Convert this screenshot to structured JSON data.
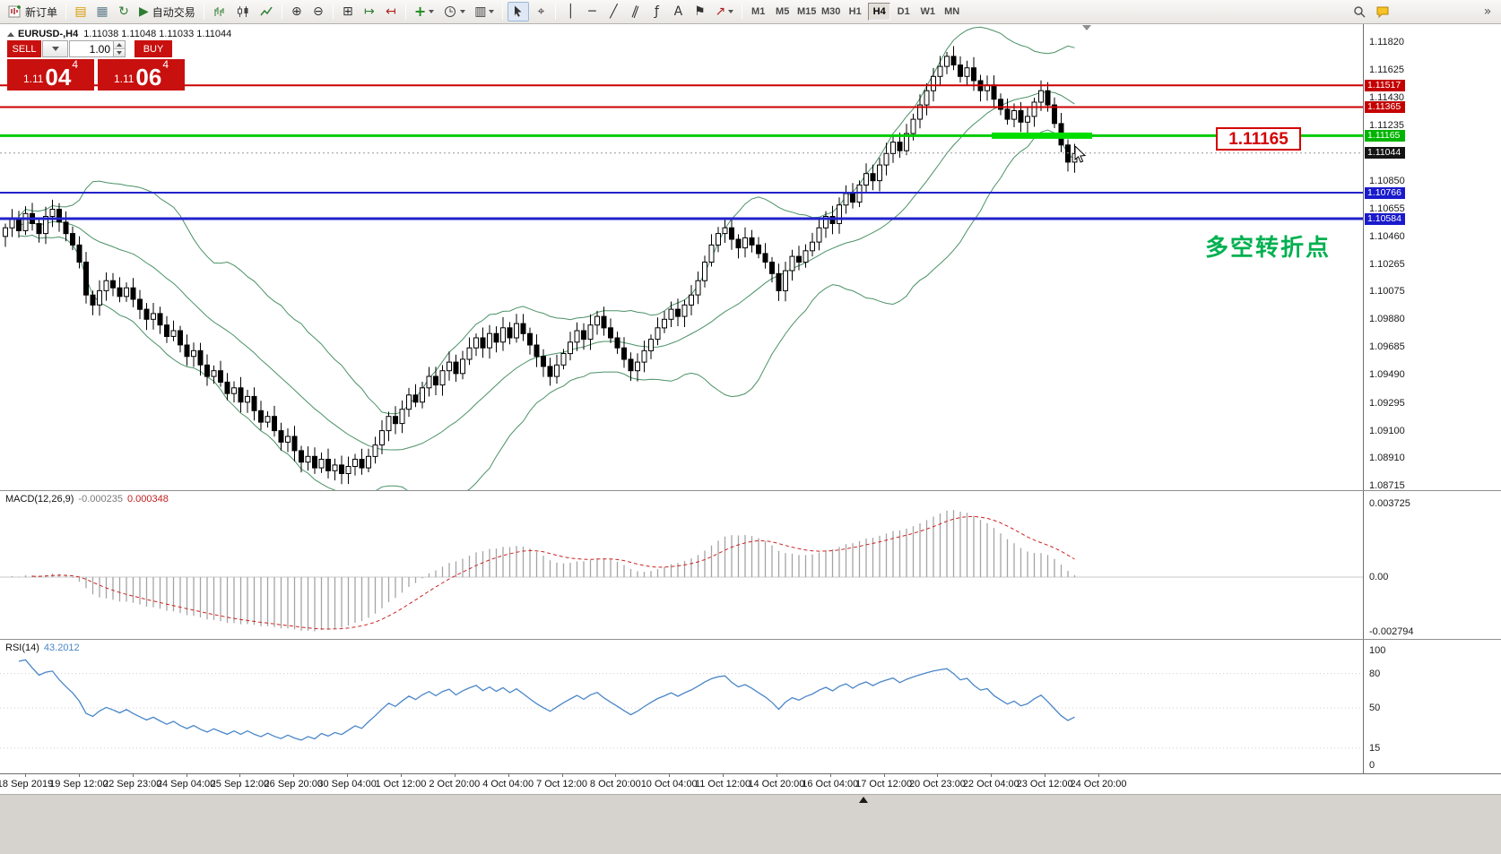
{
  "toolbar": {
    "items": [
      {
        "name": "new-order-button",
        "icon": "order",
        "label": "新订单"
      },
      {
        "sep": true
      },
      {
        "name": "new-chart-button",
        "icon": "new-chart"
      },
      {
        "name": "profiles-button",
        "icon": "profiles"
      },
      {
        "name": "refresh-button",
        "icon": "refresh"
      },
      {
        "name": "autotrading-button",
        "icon": "autotrading",
        "label": "自动交易"
      },
      {
        "sep": true
      },
      {
        "name": "bar-chart-button",
        "icon": "bars"
      },
      {
        "name": "candlestick-chart-button",
        "icon": "candles"
      },
      {
        "name": "line-chart-button",
        "icon": "line"
      },
      {
        "sep": true
      },
      {
        "name": "zoom-in-button",
        "icon": "zoom-in"
      },
      {
        "name": "zoom-out-button",
        "icon": "zoom-out"
      },
      {
        "sep": true
      },
      {
        "name": "tile-windows-button",
        "icon": "tile"
      },
      {
        "name": "auto-scroll-button",
        "icon": "autoscroll"
      },
      {
        "name": "chart-shift-button",
        "icon": "shift"
      },
      {
        "sep": true
      },
      {
        "name": "indicators-button",
        "icon": "indicator-add",
        "dropdown": true
      },
      {
        "name": "periods-button",
        "icon": "clock",
        "dropdown": true
      },
      {
        "name": "templates-button",
        "icon": "template",
        "dropdown": true
      },
      {
        "sep": true
      },
      {
        "name": "cursor-button",
        "icon": "cursor",
        "active": true
      },
      {
        "name": "crosshair-button",
        "icon": "crosshair"
      },
      {
        "sep": true
      },
      {
        "name": "vertical-line-button",
        "icon": "vline"
      },
      {
        "name": "horizontal-line-button",
        "icon": "hline"
      },
      {
        "name": "trendline-button",
        "icon": "tline"
      },
      {
        "name": "channel-button",
        "icon": "channel"
      },
      {
        "name": "fibonacci-button",
        "icon": "fibo"
      },
      {
        "name": "text-button",
        "icon": "text"
      },
      {
        "name": "label-button",
        "icon": "flag"
      },
      {
        "name": "arrows-button",
        "icon": "arrows",
        "dropdown": true
      },
      {
        "sep": true
      }
    ],
    "timeframes": [
      {
        "name": "timeframe-m1",
        "label": "M1"
      },
      {
        "name": "timeframe-m5",
        "label": "M5"
      },
      {
        "name": "timeframe-m15",
        "label": "M15"
      },
      {
        "name": "timeframe-m30",
        "label": "M30"
      },
      {
        "name": "timeframe-h1",
        "label": "H1"
      },
      {
        "name": "timeframe-h4",
        "label": "H4",
        "active": true
      },
      {
        "name": "timeframe-d1",
        "label": "D1"
      },
      {
        "name": "timeframe-w1",
        "label": "W1"
      },
      {
        "name": "timeframe-mn",
        "label": "MN"
      }
    ],
    "right_items": [
      {
        "name": "search-button",
        "icon": "search"
      },
      {
        "name": "community-button",
        "icon": "chat"
      },
      {
        "name": "menu-overflow-button",
        "icon": "overflow"
      }
    ]
  },
  "chart": {
    "symbol_period": "EURUSD-,H4",
    "ohlc": "1.11038 1.11048 1.11033 1.11044",
    "trade_panel": {
      "sell_label": "SELL",
      "buy_label": "BUY",
      "volume": "1.00",
      "sell_price": {
        "prefix": "1.11",
        "big": "04",
        "sup": "4"
      },
      "buy_price": {
        "prefix": "1.11",
        "big": "06",
        "sup": "4"
      }
    },
    "callout_text": "1.11165",
    "annotation": {
      "text": "多空转折点",
      "color": "#00b050"
    },
    "axis_labels": [
      "1.11820",
      "1.11625",
      "1.11430",
      "1.11235",
      "1.10850",
      "1.10655",
      "1.10460",
      "1.10265",
      "1.10075",
      "1.09880",
      "1.09685",
      "1.09490",
      "1.09295",
      "1.09100",
      "1.08910",
      "1.08715"
    ],
    "price_tags": [
      {
        "text": "1.11517",
        "price": 1.11517,
        "color": "#c40000"
      },
      {
        "text": "1.11365",
        "price": 1.11365,
        "color": "#c40000"
      },
      {
        "text": "1.11165",
        "price": 1.11165,
        "color": "#00b400"
      },
      {
        "text": "1.11044",
        "price": 1.11044,
        "color": "#141414"
      },
      {
        "text": "1.10766",
        "price": 1.10766,
        "color": "#1a1acc"
      },
      {
        "text": "1.10584",
        "price": 1.10584,
        "color": "#1a1acc"
      }
    ],
    "hlines": [
      {
        "price": 1.11517,
        "color": "#cc0000",
        "w": 2
      },
      {
        "price": 1.11365,
        "color": "#cc0000",
        "w": 2
      },
      {
        "price": 1.11165,
        "color": "#00cc00",
        "w": 3
      },
      {
        "price": 1.10766,
        "color": "#2222cc",
        "w": 2
      },
      {
        "price": 1.10584,
        "color": "#2222cc",
        "w": 3
      }
    ],
    "highlight": {
      "price": 1.11165,
      "color": "#00dd00"
    },
    "current_price": 1.11044
  },
  "macd": {
    "name": "MACD(12,26,9)",
    "value_main": "-0.000235",
    "value_signal": "0.000348",
    "scale_top": "0.003725",
    "scale_zero": "0.00",
    "scale_bottom": "-0.002794",
    "params": [
      12,
      26,
      9
    ]
  },
  "rsi": {
    "name": "RSI(14)",
    "value": "43.2012",
    "period": 14,
    "scale": [
      "100",
      "80",
      "50",
      "15",
      "0"
    ],
    "levels": [
      80,
      50,
      15
    ]
  },
  "chart_data": {
    "type": "candlestick",
    "symbol": "EURUSD",
    "period": "H4",
    "y_range": [
      1.08715,
      1.1182
    ],
    "overlays": {
      "bollinger": {
        "period": 20,
        "deviation": 2
      }
    },
    "levels": {
      "resistance": [
        1.11517,
        1.11365
      ],
      "key_level": 1.11165,
      "support": [
        1.10766,
        1.10584
      ],
      "current": 1.11044
    },
    "x_labels": [
      "18 Sep 2019",
      "19 Sep 12:00",
      "22 Sep 23:00",
      "24 Sep 04:00",
      "25 Sep 12:00",
      "26 Sep 20:00",
      "30 Sep 04:00",
      "1 Oct 12:00",
      "2 Oct 20:00",
      "4 Oct 04:00",
      "7 Oct 12:00",
      "8 Oct 20:00",
      "10 Oct 04:00",
      "11 Oct 12:00",
      "14 Oct 20:00",
      "16 Oct 04:00",
      "17 Oct 12:00",
      "20 Oct 23:00",
      "22 Oct 04:00",
      "23 Oct 12:00",
      "24 Oct 20:00"
    ],
    "closes": [
      1.1052,
      1.1058,
      1.105,
      1.1062,
      1.1055,
      1.1048,
      1.106,
      1.1065,
      1.1056,
      1.1048,
      1.104,
      1.1028,
      1.1005,
      1.0998,
      1.1008,
      1.1015,
      1.101,
      1.1004,
      1.101,
      1.1002,
      1.0995,
      1.0988,
      1.0992,
      1.0984,
      1.0976,
      1.098,
      1.097,
      1.0962,
      1.0966,
      1.0956,
      1.0948,
      1.0952,
      1.0944,
      1.0936,
      1.094,
      1.093,
      1.0934,
      1.0924,
      1.0916,
      1.092,
      1.091,
      1.0902,
      1.0906,
      1.0896,
      1.0888,
      1.0892,
      1.0884,
      1.089,
      1.0882,
      1.0886,
      1.088,
      1.0885,
      1.089,
      1.0884,
      1.0892,
      1.09,
      1.091,
      1.092,
      1.0915,
      1.0925,
      1.0935,
      1.093,
      1.094,
      1.0948,
      1.0942,
      1.0952,
      1.0958,
      1.095,
      1.096,
      1.0968,
      1.0975,
      1.0968,
      1.0978,
      1.0972,
      1.0982,
      1.0975,
      1.0985,
      1.0978,
      1.097,
      1.0962,
      1.0955,
      1.0948,
      1.0956,
      1.0964,
      1.0972,
      1.098,
      1.0974,
      1.0984,
      1.099,
      1.0982,
      1.0975,
      1.0968,
      1.096,
      1.0952,
      1.0958,
      1.0966,
      1.0974,
      1.0982,
      1.0988,
      1.0995,
      1.099,
      1.0998,
      1.1005,
      1.1015,
      1.1028,
      1.104,
      1.1048,
      1.1052,
      1.1044,
      1.1038,
      1.1045,
      1.104,
      1.1034,
      1.1028,
      1.102,
      1.1008,
      1.1022,
      1.1032,
      1.1028,
      1.1036,
      1.1042,
      1.1052,
      1.106,
      1.1055,
      1.1068,
      1.1076,
      1.107,
      1.1082,
      1.109,
      1.1085,
      1.1096,
      1.1104,
      1.1112,
      1.1106,
      1.1118,
      1.1128,
      1.1138,
      1.1148,
      1.1158,
      1.1165,
      1.1172,
      1.1166,
      1.1158,
      1.1164,
      1.1155,
      1.1148,
      1.1152,
      1.1142,
      1.1135,
      1.1128,
      1.1134,
      1.1126,
      1.113,
      1.114,
      1.1148,
      1.1138,
      1.1125,
      1.111,
      1.1098,
      1.1104
    ]
  }
}
